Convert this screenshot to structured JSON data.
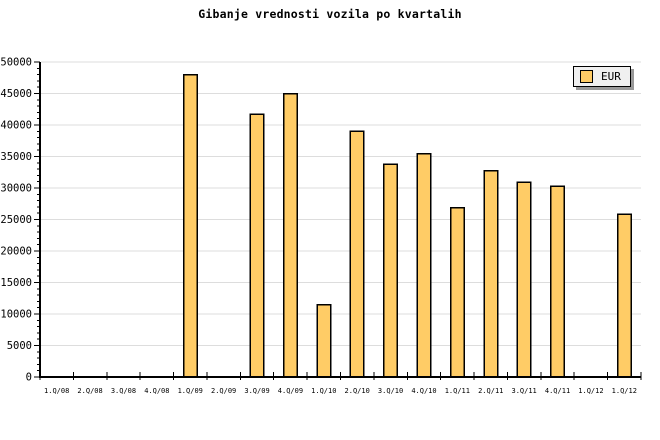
{
  "title": "Gibanje vrednosti vozila po kvartalih",
  "legend": {
    "label": "EUR",
    "position": "top-right"
  },
  "colors": {
    "bar_fill": "#FFCC66",
    "bar_border": "#000000",
    "grid": "#DDDDDD",
    "axis": "#000000",
    "background": "#FFFFFF",
    "legend_bg": "#F0F0F0",
    "legend_shadow": "#999999",
    "text": "#000000"
  },
  "chart_data": {
    "type": "bar",
    "title": "Gibanje vrednosti vozila po kvartalih",
    "categories": [
      "1.Q/08",
      "2.Q/08",
      "3.Q/08",
      "4.Q/08",
      "1.Q/09",
      "2.Q/09",
      "3.Q/09",
      "4.Q/09",
      "1.Q/10",
      "2.Q/10",
      "3.Q/10",
      "4.Q/10",
      "1.Q/11",
      "2.Q/11",
      "3.Q/11",
      "4.Q/11",
      "1.Q/12",
      "1.Q/12"
    ],
    "series": [
      {
        "name": "EUR",
        "values": [
          null,
          null,
          null,
          null,
          48000,
          null,
          41700,
          45000,
          11500,
          39000,
          33800,
          35400,
          26900,
          32700,
          30900,
          30300,
          null,
          25800
        ]
      }
    ],
    "xlabel": "",
    "ylabel": "",
    "ylim": [
      0,
      50000
    ],
    "ytick_major": 5000,
    "ytick_minor": 1000,
    "grid": "horizontal-major",
    "legend_position": "top-right"
  }
}
